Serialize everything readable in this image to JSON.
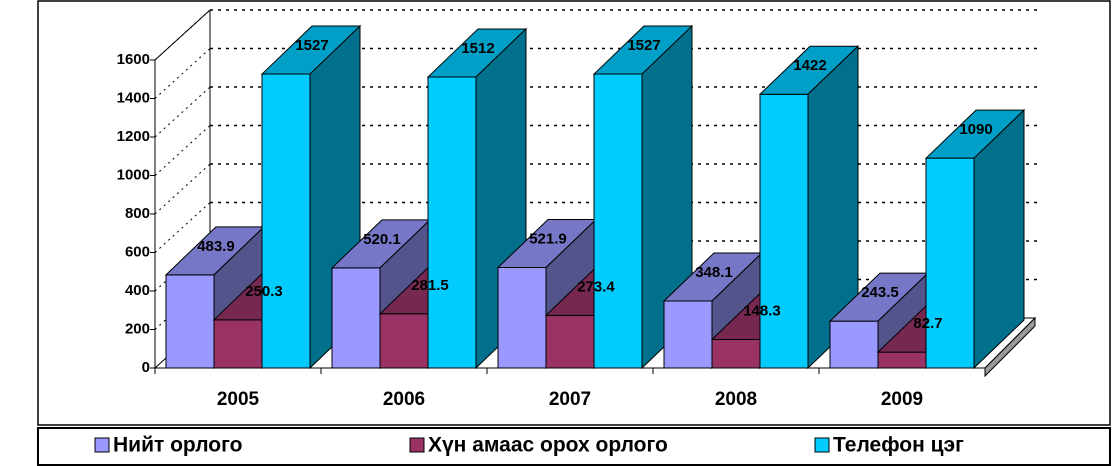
{
  "chart_data": {
    "type": "bar3d",
    "categories": [
      "2005",
      "2006",
      "2007",
      "2008",
      "2009"
    ],
    "series": [
      {
        "name": "Нийт орлого",
        "color": "#9999ff",
        "values": [
          483.9,
          520.1,
          521.9,
          348.1,
          243.5
        ]
      },
      {
        "name": "Хүн амаас орох орлого",
        "color": "#993366",
        "values": [
          250.3,
          281.5,
          273.4,
          148.3,
          82.7
        ]
      },
      {
        "name": "Телефон цэг",
        "color": "#00ccff",
        "values": [
          1527,
          1512,
          1527,
          1422,
          1090
        ]
      }
    ],
    "ylim": [
      0,
      1600
    ],
    "yticks": [
      0,
      200,
      400,
      600,
      800,
      1000,
      1200,
      1400,
      1600
    ],
    "grid": true,
    "legend": "bottom"
  }
}
